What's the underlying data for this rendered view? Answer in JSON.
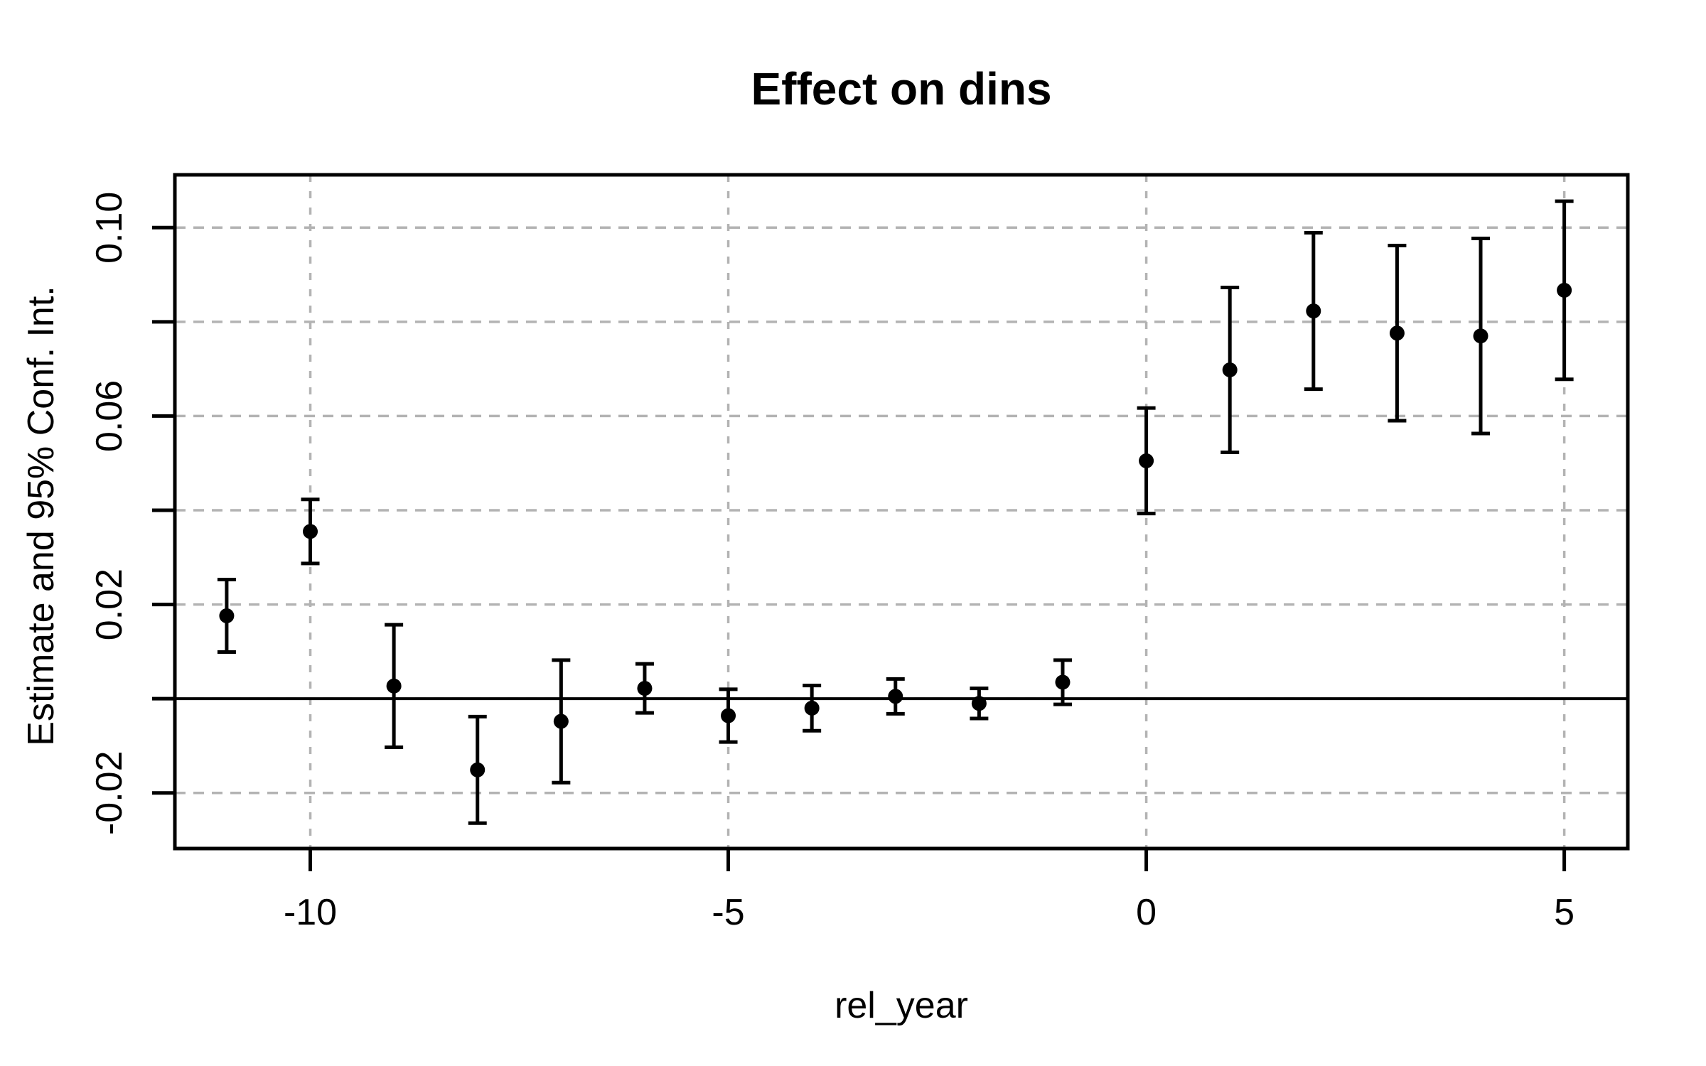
{
  "page": {
    "background": "#ffffff"
  },
  "chart_data": {
    "type": "scatter",
    "subtype": "point-estimates-with-95pct-ci-errorbars",
    "title": "Effect on dins",
    "xlabel": "rel_year",
    "ylabel": "Estimate and 95% Conf. Int.",
    "x": [
      -11,
      -10,
      -9,
      -8,
      -7,
      -6,
      -5,
      -4,
      -3,
      -2,
      -1,
      0,
      1,
      2,
      3,
      4,
      5
    ],
    "series": [
      {
        "name": "estimate",
        "values": [
          0.0176,
          0.0355,
          0.0027,
          -0.0151,
          -0.0048,
          0.0022,
          -0.0036,
          -0.002,
          0.0005,
          -0.001,
          0.0035,
          0.0505,
          0.0698,
          0.0823,
          0.0776,
          0.077,
          0.0867
        ]
      },
      {
        "name": "ci_lower",
        "values": [
          0.0099,
          0.0287,
          -0.0103,
          -0.0264,
          -0.0178,
          -0.003,
          -0.0092,
          -0.0068,
          -0.0032,
          -0.0042,
          -0.0012,
          0.0393,
          0.0523,
          0.0657,
          0.059,
          0.0563,
          0.0678
        ]
      },
      {
        "name": "ci_upper",
        "values": [
          0.0253,
          0.0423,
          0.0157,
          -0.0038,
          0.0082,
          0.0074,
          0.002,
          0.0028,
          0.0042,
          0.0022,
          0.0082,
          0.0617,
          0.0873,
          0.0989,
          0.0962,
          0.0977,
          0.1056
        ]
      }
    ],
    "xlim": [
      -11.62,
      5.76
    ],
    "ylim": [
      -0.0318,
      0.1112
    ],
    "x_ticks": [
      {
        "value": -10,
        "label": "-10"
      },
      {
        "value": -5,
        "label": "-5"
      },
      {
        "value": 0,
        "label": "0"
      },
      {
        "value": 5,
        "label": "5"
      }
    ],
    "y_ticks": [
      {
        "value": -0.02,
        "label": "-0.02"
      },
      {
        "value": 0.0,
        "label": ""
      },
      {
        "value": 0.02,
        "label": "0.02"
      },
      {
        "value": 0.04,
        "label": ""
      },
      {
        "value": 0.06,
        "label": "0.06"
      },
      {
        "value": 0.08,
        "label": ""
      },
      {
        "value": 0.1,
        "label": "0.10"
      }
    ],
    "grid": {
      "horizontal_at": [
        -0.02,
        0.0,
        0.02,
        0.04,
        0.06,
        0.08,
        0.1
      ],
      "vertical_at": [
        -10,
        -5,
        0,
        5
      ],
      "style": "dashed"
    },
    "reference_line_y": 0,
    "legend": "none",
    "colors": {
      "points": "#000000",
      "error_bars": "#000000",
      "grid": "#b3b3b3",
      "axis": "#000000",
      "reference_line": "#000000",
      "background": "#ffffff",
      "title": "#000000"
    }
  }
}
